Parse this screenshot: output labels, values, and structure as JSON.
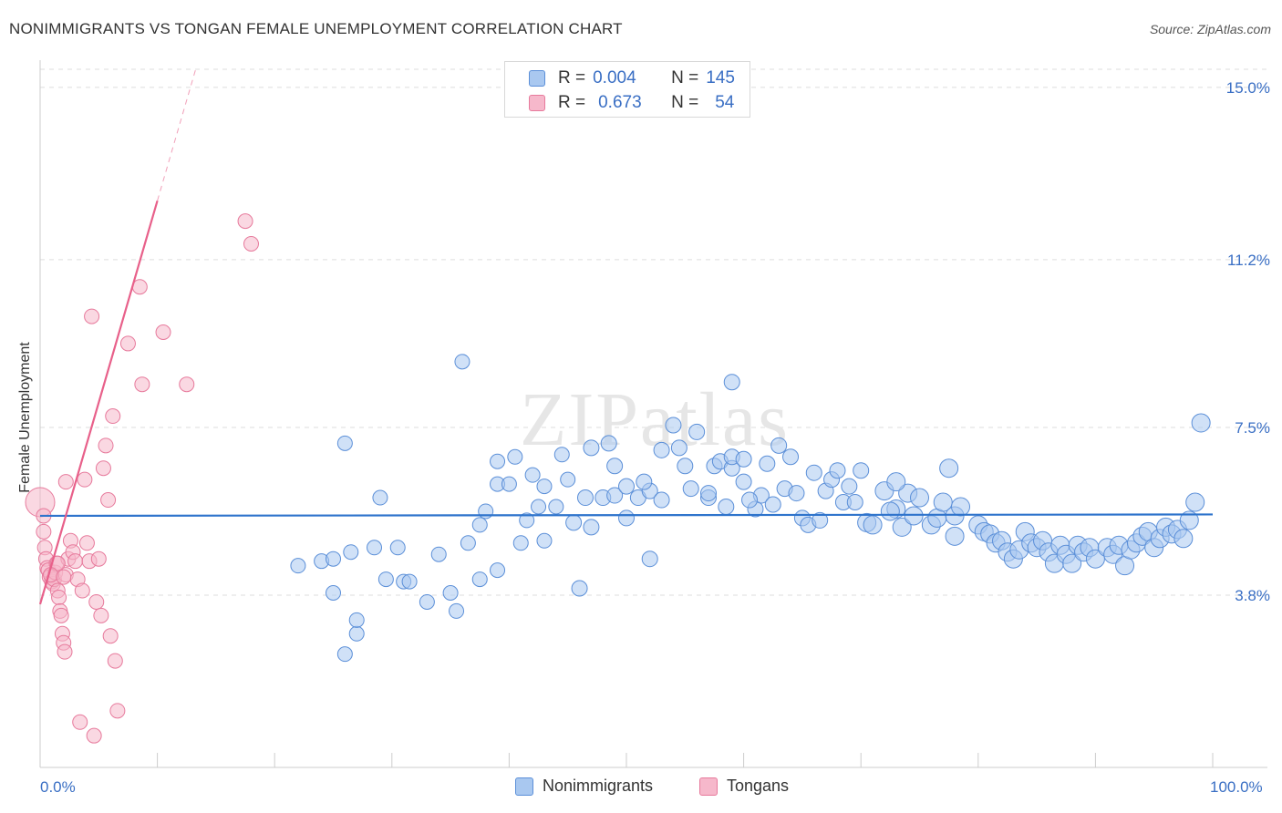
{
  "title": "NONIMMIGRANTS VS TONGAN FEMALE UNEMPLOYMENT CORRELATION CHART",
  "source": "Source: ZipAtlas.com",
  "watermark": "ZIPatlas",
  "colors": {
    "blue_fill": "#a9c8f0",
    "blue_stroke": "#5b8fd8",
    "blue_line": "#2f74cc",
    "pink_fill": "#f6b8cb",
    "pink_stroke": "#e77a9c",
    "pink_line": "#e8608a",
    "axis_text": "#3a6fc4",
    "grid": "#dddddd"
  },
  "legend_top": {
    "rows": [
      {
        "series": "Nonimmigrants",
        "r_label": "R =",
        "r_value": "0.004",
        "n_label": "N =",
        "n_value": "145"
      },
      {
        "series": "Tongans",
        "r_label": "R =",
        "r_value": "0.673",
        "n_label": "N =",
        "n_value": "54"
      }
    ]
  },
  "legend_bottom": [
    {
      "label": "Nonimmigrants"
    },
    {
      "label": "Tongans"
    }
  ],
  "chart_data": {
    "type": "scatter",
    "xlabel": "",
    "ylabel": "Female Unemployment",
    "xlim": [
      0,
      100
    ],
    "ylim": [
      0,
      15.4
    ],
    "x_tick_labels": [
      {
        "value": 0,
        "label": "0.0%"
      },
      {
        "value": 100,
        "label": "100.0%"
      }
    ],
    "y_ticks": [
      {
        "value": 3.8,
        "label": "3.8%"
      },
      {
        "value": 7.5,
        "label": "7.5%"
      },
      {
        "value": 11.2,
        "label": "11.2%"
      },
      {
        "value": 15.0,
        "label": "15.0%"
      }
    ],
    "series": [
      {
        "name": "Nonimmigrants",
        "r": 0.004,
        "n": 145,
        "trend": {
          "x0": 0,
          "y0": 5.55,
          "x1": 100,
          "y1": 5.58
        },
        "points": [
          [
            22,
            4.45
          ],
          [
            24,
            4.55
          ],
          [
            25,
            4.6
          ],
          [
            25,
            3.85
          ],
          [
            26,
            7.15
          ],
          [
            26,
            2.5
          ],
          [
            27,
            2.95
          ],
          [
            27,
            3.25
          ],
          [
            29,
            5.95
          ],
          [
            28.5,
            4.85
          ],
          [
            29.5,
            4.15
          ],
          [
            30.5,
            4.85
          ],
          [
            31,
            4.1
          ],
          [
            31.5,
            4.1
          ],
          [
            33,
            3.65
          ],
          [
            34,
            4.7
          ],
          [
            35,
            3.85
          ],
          [
            35.5,
            3.45
          ],
          [
            36,
            8.95
          ],
          [
            37.5,
            5.35
          ],
          [
            37.5,
            4.15
          ],
          [
            38,
            5.65
          ],
          [
            39,
            4.35
          ],
          [
            39,
            6.25
          ],
          [
            39,
            6.75
          ],
          [
            40,
            6.25
          ],
          [
            40.5,
            6.85
          ],
          [
            41,
            4.95
          ],
          [
            41.5,
            5.45
          ],
          [
            42,
            6.45
          ],
          [
            43,
            6.2
          ],
          [
            43,
            5.0
          ],
          [
            44,
            5.75
          ],
          [
            44.5,
            6.9
          ],
          [
            45,
            6.35
          ],
          [
            45.5,
            5.4
          ],
          [
            46,
            3.95
          ],
          [
            47,
            7.05
          ],
          [
            47,
            5.3
          ],
          [
            48,
            5.95
          ],
          [
            48.5,
            7.15
          ],
          [
            49,
            6.65
          ],
          [
            49,
            6.0
          ],
          [
            50,
            6.2
          ],
          [
            50,
            5.5
          ],
          [
            51,
            5.95
          ],
          [
            52,
            6.1
          ],
          [
            52,
            4.6
          ],
          [
            53,
            5.9
          ],
          [
            53,
            7.0
          ],
          [
            54,
            7.55
          ],
          [
            54.5,
            7.05
          ],
          [
            55,
            6.65
          ],
          [
            56,
            7.4
          ],
          [
            57,
            5.95
          ],
          [
            57,
            6.05
          ],
          [
            57.5,
            6.65
          ],
          [
            58,
            6.75
          ],
          [
            58.5,
            5.75
          ],
          [
            59,
            6.6
          ],
          [
            59,
            6.85
          ],
          [
            60,
            6.8
          ],
          [
            60,
            6.3
          ],
          [
            61,
            5.7
          ],
          [
            61.5,
            6.0
          ],
          [
            62,
            6.7
          ],
          [
            62.5,
            5.8
          ],
          [
            63,
            7.1
          ],
          [
            63.5,
            6.15
          ],
          [
            64,
            6.85
          ],
          [
            64.5,
            6.05
          ],
          [
            65,
            5.5
          ],
          [
            65.5,
            5.35
          ],
          [
            66,
            6.5
          ],
          [
            67,
            6.1
          ],
          [
            67.5,
            6.35
          ],
          [
            68,
            6.55
          ],
          [
            68.5,
            5.85
          ],
          [
            69,
            6.2
          ],
          [
            70,
            6.55
          ],
          [
            70.5,
            5.4
          ],
          [
            71,
            5.35
          ],
          [
            72,
            6.1
          ],
          [
            73,
            5.7
          ],
          [
            73.5,
            5.3
          ],
          [
            74,
            6.05
          ],
          [
            74.5,
            5.55
          ],
          [
            75,
            5.95
          ],
          [
            76,
            5.35
          ],
          [
            76.5,
            5.5
          ],
          [
            77,
            5.85
          ],
          [
            78,
            5.55
          ],
          [
            78,
            5.1
          ],
          [
            78.5,
            5.75
          ],
          [
            80,
            5.35
          ],
          [
            80.5,
            5.2
          ],
          [
            81,
            5.15
          ],
          [
            81.5,
            4.95
          ],
          [
            82,
            5.0
          ],
          [
            82.5,
            4.75
          ],
          [
            83,
            4.6
          ],
          [
            83.5,
            4.8
          ],
          [
            84,
            5.2
          ],
          [
            84.5,
            4.95
          ],
          [
            85,
            4.85
          ],
          [
            85.5,
            5.0
          ],
          [
            86,
            4.75
          ],
          [
            86.5,
            4.5
          ],
          [
            87,
            4.9
          ],
          [
            87.5,
            4.7
          ],
          [
            88,
            4.5
          ],
          [
            88.5,
            4.9
          ],
          [
            89,
            4.75
          ],
          [
            89.5,
            4.85
          ],
          [
            90,
            4.6
          ],
          [
            91,
            4.85
          ],
          [
            91.5,
            4.7
          ],
          [
            92,
            4.9
          ],
          [
            92.5,
            4.45
          ],
          [
            93,
            4.8
          ],
          [
            93.5,
            4.95
          ],
          [
            94,
            5.1
          ],
          [
            94.5,
            5.2
          ],
          [
            95,
            4.85
          ],
          [
            95.5,
            5.05
          ],
          [
            96,
            5.3
          ],
          [
            96.5,
            5.15
          ],
          [
            97,
            5.25
          ],
          [
            97.5,
            5.05
          ],
          [
            98,
            5.45
          ],
          [
            99,
            7.6
          ],
          [
            98.5,
            5.85
          ],
          [
            26.5,
            4.75
          ],
          [
            36.5,
            4.95
          ],
          [
            42.5,
            5.75
          ],
          [
            46.5,
            5.95
          ],
          [
            51.5,
            6.3
          ],
          [
            55.5,
            6.15
          ],
          [
            60.5,
            5.9
          ],
          [
            66.5,
            5.45
          ],
          [
            69.5,
            5.85
          ],
          [
            72.5,
            5.65
          ],
          [
            77.5,
            6.6
          ],
          [
            73,
            6.3
          ],
          [
            59,
            8.5
          ]
        ]
      },
      {
        "name": "Tongans",
        "r": 0.673,
        "n": 54,
        "trend": {
          "x0": 0,
          "y0": 3.6,
          "x1": 10,
          "y1": 12.5
        },
        "trend_extension": {
          "x0": 10,
          "y0": 12.5,
          "x1": 26,
          "y1": 26.7
        },
        "points": [
          [
            0,
            5.85
          ],
          [
            0.3,
            5.55
          ],
          [
            0.3,
            5.2
          ],
          [
            0.4,
            4.85
          ],
          [
            0.5,
            4.6
          ],
          [
            0.6,
            4.4
          ],
          [
            0.7,
            4.35
          ],
          [
            0.8,
            4.2
          ],
          [
            1.0,
            4.1
          ],
          [
            1.1,
            4.05
          ],
          [
            1.2,
            4.15
          ],
          [
            1.3,
            4.3
          ],
          [
            1.4,
            4.5
          ],
          [
            1.5,
            3.9
          ],
          [
            1.6,
            3.75
          ],
          [
            1.7,
            3.45
          ],
          [
            1.8,
            3.35
          ],
          [
            1.9,
            2.95
          ],
          [
            2.0,
            2.75
          ],
          [
            2.1,
            2.55
          ],
          [
            2.2,
            4.25
          ],
          [
            2.4,
            4.6
          ],
          [
            2.6,
            5.0
          ],
          [
            2.8,
            4.75
          ],
          [
            3.0,
            4.55
          ],
          [
            3.2,
            4.15
          ],
          [
            3.4,
            1.0
          ],
          [
            3.6,
            3.9
          ],
          [
            3.8,
            6.35
          ],
          [
            4.0,
            4.95
          ],
          [
            4.2,
            4.55
          ],
          [
            4.4,
            9.95
          ],
          [
            4.6,
            0.7
          ],
          [
            4.8,
            3.65
          ],
          [
            5.0,
            4.6
          ],
          [
            5.2,
            3.35
          ],
          [
            5.4,
            6.6
          ],
          [
            5.6,
            7.1
          ],
          [
            5.8,
            5.9
          ],
          [
            6.0,
            2.9
          ],
          [
            6.2,
            7.75
          ],
          [
            6.4,
            2.35
          ],
          [
            6.6,
            1.25
          ],
          [
            7.5,
            9.35
          ],
          [
            8.5,
            10.6
          ],
          [
            10.5,
            9.6
          ],
          [
            12.5,
            8.45
          ],
          [
            17.5,
            12.05
          ],
          [
            18,
            11.55
          ],
          [
            8.7,
            8.45
          ],
          [
            2.2,
            6.3
          ],
          [
            1.5,
            4.5
          ],
          [
            0.9,
            4.25
          ],
          [
            2.0,
            4.2
          ]
        ]
      }
    ]
  }
}
